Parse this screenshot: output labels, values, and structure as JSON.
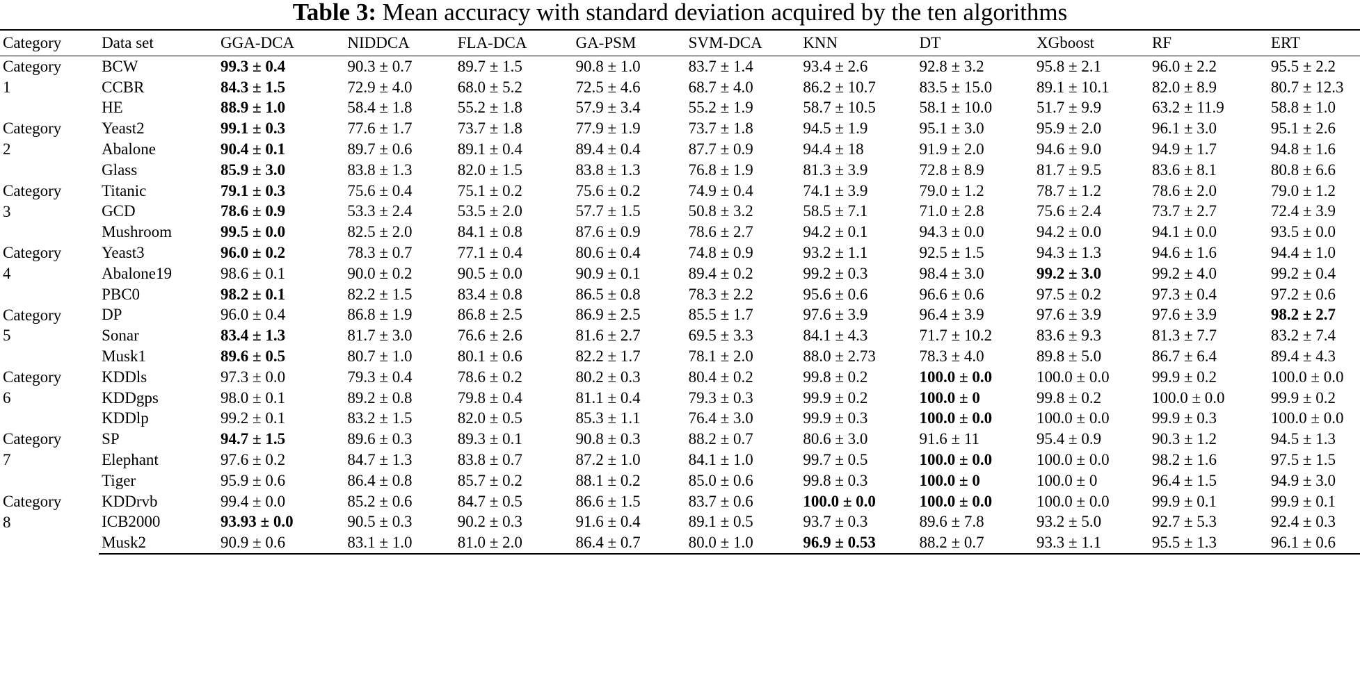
{
  "caption": {
    "label": "Table 3:",
    "text": "Mean accuracy with standard deviation acquired by the ten algorithms"
  },
  "headers": [
    "Category",
    "Data set",
    "GGA-DCA",
    "NIDDCA",
    "FLA-DCA",
    "GA-PSM",
    "SVM-DCA",
    "KNN",
    "DT",
    "XGboost",
    "RF",
    "ERT"
  ],
  "rows": [
    {
      "cat": [
        "Category",
        "1",
        ""
      ],
      "ds": "BCW",
      "v": [
        "99.3 ± 0.4",
        "90.3 ± 0.7",
        "89.7 ± 1.5",
        "90.8 ± 1.0",
        "83.7 ± 1.4",
        "93.4 ± 2.6",
        "92.8 ± 3.2",
        "95.8 ± 2.1",
        "96.0 ± 2.2",
        "95.5 ± 2.2"
      ],
      "bold": [
        0
      ]
    },
    {
      "ds": "CCBR",
      "v": [
        "84.3 ± 1.5",
        "72.9 ± 4.0",
        "68.0 ± 5.2",
        "72.5 ± 4.6",
        "68.7 ± 4.0",
        "86.2 ± 10.7",
        "83.5 ± 15.0",
        "89.1 ± 10.1",
        "82.0 ± 8.9",
        "80.7 ± 12.3"
      ],
      "bold": [
        0
      ]
    },
    {
      "ds": "HE",
      "v": [
        "88.9 ± 1.0",
        "58.4 ± 1.8",
        "55.2 ± 1.8",
        "57.9 ± 3.4",
        "55.2 ± 1.9",
        "58.7 ± 10.5",
        "58.1 ± 10.0",
        "51.7 ± 9.9",
        "63.2 ± 11.9",
        "58.8 ± 1.0"
      ],
      "bold": [
        0
      ]
    },
    {
      "cat": [
        "Category",
        "2",
        ""
      ],
      "ds": "Yeast2",
      "v": [
        "99.1 ± 0.3",
        "77.6 ± 1.7",
        "73.7 ± 1.8",
        "77.9 ± 1.9",
        "73.7 ± 1.8",
        "94.5 ± 1.9",
        "95.1 ± 3.0",
        "95.9 ± 2.0",
        "96.1 ± 3.0",
        "95.1 ± 2.6"
      ],
      "bold": [
        0
      ]
    },
    {
      "ds": "Abalone",
      "v": [
        "90.4 ± 0.1",
        "89.7 ± 0.6",
        "89.1 ± 0.4",
        "89.4 ± 0.4",
        "87.7 ± 0.9",
        "94.4 ± 18",
        "91.9 ± 2.0",
        "94.6 ± 9.0",
        "94.9 ± 1.7",
        "94.8 ± 1.6"
      ],
      "bold": [
        0
      ]
    },
    {
      "ds": "Glass",
      "v": [
        "85.9 ± 3.0",
        "83.8 ± 1.3",
        "82.0 ± 1.5",
        "83.8 ± 1.3",
        "76.8 ± 1.9",
        "81.3 ± 3.9",
        "72.8 ± 8.9",
        "81.7 ± 9.5",
        "83.6 ± 8.1",
        "80.8 ± 6.6"
      ],
      "bold": [
        0
      ]
    },
    {
      "cat": [
        "Category",
        "3",
        ""
      ],
      "ds": "Titanic",
      "v": [
        "79.1 ± 0.3",
        "75.6 ± 0.4",
        "75.1 ± 0.2",
        "75.6 ± 0.2",
        "74.9 ± 0.4",
        "74.1 ± 3.9",
        "79.0 ± 1.2",
        "78.7 ± 1.2",
        "78.6 ± 2.0",
        "79.0 ± 1.2"
      ],
      "bold": [
        0
      ]
    },
    {
      "ds": "GCD",
      "v": [
        "78.6 ± 0.9",
        "53.3 ± 2.4",
        "53.5 ± 2.0",
        "57.7 ± 1.5",
        "50.8 ± 3.2",
        "58.5 ± 7.1",
        "71.0 ± 2.8",
        "75.6 ± 2.4",
        "73.7 ± 2.7",
        "72.4 ± 3.9"
      ],
      "bold": [
        0
      ]
    },
    {
      "ds": "Mushroom",
      "v": [
        "99.5 ± 0.0",
        "82.5 ± 2.0",
        "84.1 ± 0.8",
        "87.6 ± 0.9",
        "78.6 ± 2.7",
        "94.2 ± 0.1",
        "94.3 ± 0.0",
        "94.2 ± 0.0",
        "94.1 ± 0.0",
        "93.5 ± 0.0"
      ],
      "bold": [
        0
      ]
    },
    {
      "cat": [
        "Category",
        "4",
        ""
      ],
      "ds": "Yeast3",
      "v": [
        "96.0 ± 0.2",
        "78.3 ± 0.7",
        "77.1 ± 0.4",
        "80.6 ± 0.4",
        "74.8 ± 0.9",
        "93.2 ± 1.1",
        "92.5 ± 1.5",
        "94.3 ± 1.3",
        "94.6 ± 1.6",
        "94.4 ± 1.0"
      ],
      "bold": [
        0
      ]
    },
    {
      "ds": "Abalone19",
      "v": [
        "98.6 ± 0.1",
        "90.0 ± 0.2",
        "90.5 ± 0.0",
        "90.9 ± 0.1",
        "89.4 ± 0.2",
        "99.2 ± 0.3",
        "98.4 ± 3.0",
        "99.2 ± 3.0",
        "99.2 ± 4.0",
        "99.2 ± 0.4"
      ],
      "bold": [
        7
      ]
    },
    {
      "ds": "PBC0",
      "v": [
        "98.2 ± 0.1",
        "82.2 ± 1.5",
        "83.4 ± 0.8",
        "86.5 ± 0.8",
        "78.3 ± 2.2",
        "95.6 ± 0.6",
        "96.6 ± 0.6",
        "97.5 ± 0.2",
        "97.3 ± 0.4",
        "97.2 ± 0.6"
      ],
      "bold": [
        0
      ]
    },
    {
      "cat": [
        "Category",
        "5",
        ""
      ],
      "ds": "DP",
      "v": [
        "96.0 ± 0.4",
        "86.8 ± 1.9",
        "86.8 ± 2.5",
        "86.9 ± 2.5",
        "85.5 ± 1.7",
        "97.6 ± 3.9",
        "96.4 ± 3.9",
        "97.6 ± 3.9",
        "97.6 ± 3.9",
        "98.2 ± 2.7"
      ],
      "bold": [
        9
      ]
    },
    {
      "ds": "Sonar",
      "v": [
        "83.4 ± 1.3",
        "81.7 ± 3.0",
        "76.6 ± 2.6",
        "81.6 ± 2.7",
        "69.5 ± 3.3",
        "84.1 ± 4.3",
        "71.7 ± 10.2",
        "83.6 ± 9.3",
        "81.3 ± 7.7",
        "83.2 ± 7.4"
      ],
      "bold": [
        0
      ]
    },
    {
      "ds": "Musk1",
      "v": [
        "89.6 ± 0.5",
        "80.7 ± 1.0",
        "80.1 ± 0.6",
        "82.2 ± 1.7",
        "78.1 ± 2.0",
        "88.0 ± 2.73",
        "78.3 ± 4.0",
        "89.8 ± 5.0",
        "86.7 ± 6.4",
        "89.4 ± 4.3"
      ],
      "bold": [
        0
      ]
    },
    {
      "cat": [
        "Category",
        "6",
        ""
      ],
      "ds": "KDDls",
      "v": [
        "97.3 ± 0.0",
        "79.3 ± 0.4",
        "78.6 ± 0.2",
        "80.2 ± 0.3",
        "80.4 ± 0.2",
        "99.8 ± 0.2",
        "100.0 ± 0.0",
        "100.0 ± 0.0",
        "99.9 ± 0.2",
        "100.0 ± 0.0"
      ],
      "bold": [
        6
      ]
    },
    {
      "ds": "KDDgps",
      "v": [
        "98.0 ± 0.1",
        "89.2 ± 0.8",
        "79.8 ± 0.4",
        "81.1 ± 0.4",
        "79.3 ± 0.3",
        "99.9 ± 0.2",
        "100.0 ± 0",
        "99.8 ± 0.2",
        "100.0 ± 0.0",
        "99.9 ± 0.2"
      ],
      "bold": [
        6
      ]
    },
    {
      "ds": "KDDlp",
      "v": [
        "99.2 ± 0.1",
        "83.2 ± 1.5",
        "82.0 ± 0.5",
        "85.3 ± 1.1",
        "76.4 ± 3.0",
        "99.9 ± 0.3",
        "100.0 ± 0.0",
        "100.0 ± 0.0",
        "99.9 ± 0.3",
        "100.0 ± 0.0"
      ],
      "bold": [
        6
      ]
    },
    {
      "cat": [
        "Category",
        "7",
        ""
      ],
      "ds": "SP",
      "v": [
        "94.7 ± 1.5",
        "89.6 ± 0.3",
        "89.3 ± 0.1",
        "90.8 ± 0.3",
        "88.2 ± 0.7",
        "80.6 ± 3.0",
        "91.6 ± 11",
        "95.4 ± 0.9",
        "90.3 ± 1.2",
        "94.5 ± 1.3"
      ],
      "bold": [
        0
      ]
    },
    {
      "ds": "Elephant",
      "v": [
        "97.6 ± 0.2",
        "84.7 ± 1.3",
        "83.8 ± 0.7",
        "87.2 ± 1.0",
        "84.1 ± 1.0",
        "99.7 ± 0.5",
        "100.0 ± 0.0",
        "100.0 ± 0.0",
        "98.2 ± 1.6",
        "97.5 ± 1.5"
      ],
      "bold": [
        6
      ]
    },
    {
      "ds": "Tiger",
      "v": [
        "95.9 ± 0.6",
        "86.4 ± 0.8",
        "85.7 ± 0.2",
        "88.1 ± 0.2",
        "85.0 ± 0.6",
        "99.8 ± 0.3",
        "100.0 ± 0",
        "100.0 ± 0",
        "96.4 ± 1.5",
        "94.9 ± 3.0"
      ],
      "bold": [
        6
      ]
    },
    {
      "cat": [
        "Category",
        "8",
        ""
      ],
      "ds": "KDDrvb",
      "v": [
        "99.4 ± 0.0",
        "85.2 ± 0.6",
        "84.7 ± 0.5",
        "86.6 ± 1.5",
        "83.7 ± 0.6",
        "100.0 ± 0.0",
        "100.0 ± 0.0",
        "100.0 ± 0.0",
        "99.9 ± 0.1",
        "99.9 ± 0.1"
      ],
      "bold": [
        5,
        6
      ]
    },
    {
      "ds": "ICB2000",
      "v": [
        "93.93 ± 0.0",
        "90.5 ± 0.3",
        "90.2 ± 0.3",
        "91.6 ± 0.4",
        "89.1 ± 0.5",
        "93.7 ± 0.3",
        "89.6 ± 7.8",
        "93.2 ± 5.0",
        "92.7 ± 5.3",
        "92.4 ± 0.3"
      ],
      "bold": [
        0
      ]
    },
    {
      "ds": "Musk2",
      "v": [
        "90.9 ± 0.6",
        "83.1 ± 1.0",
        "81.0 ± 2.0",
        "86.4 ± 0.7",
        "80.0 ± 1.0",
        "96.9 ± 0.53",
        "88.2 ± 0.7",
        "93.3 ± 1.1",
        "95.5 ± 1.3",
        "96.1 ± 0.6"
      ],
      "bold": [
        5
      ]
    }
  ]
}
